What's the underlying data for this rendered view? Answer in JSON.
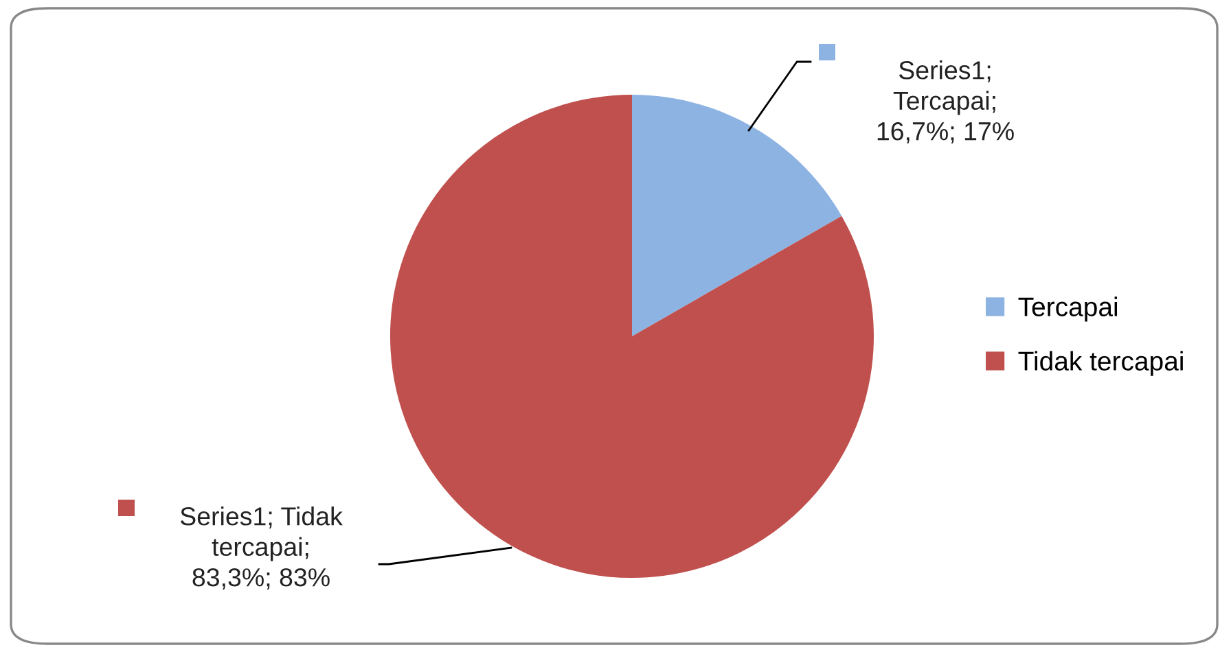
{
  "chart_data": {
    "type": "pie",
    "categories": [
      "Tercapai",
      "Tidak tercapai"
    ],
    "values": [
      16.7,
      83.3
    ],
    "colors": [
      "#8db3e2",
      "#c0504d"
    ],
    "value_labels": [
      "Series1;\nTercapai;\n16,7%; 17%",
      "Series1; Tidak\ntercapai;\n83,3%; 83%"
    ],
    "legend": "right"
  }
}
